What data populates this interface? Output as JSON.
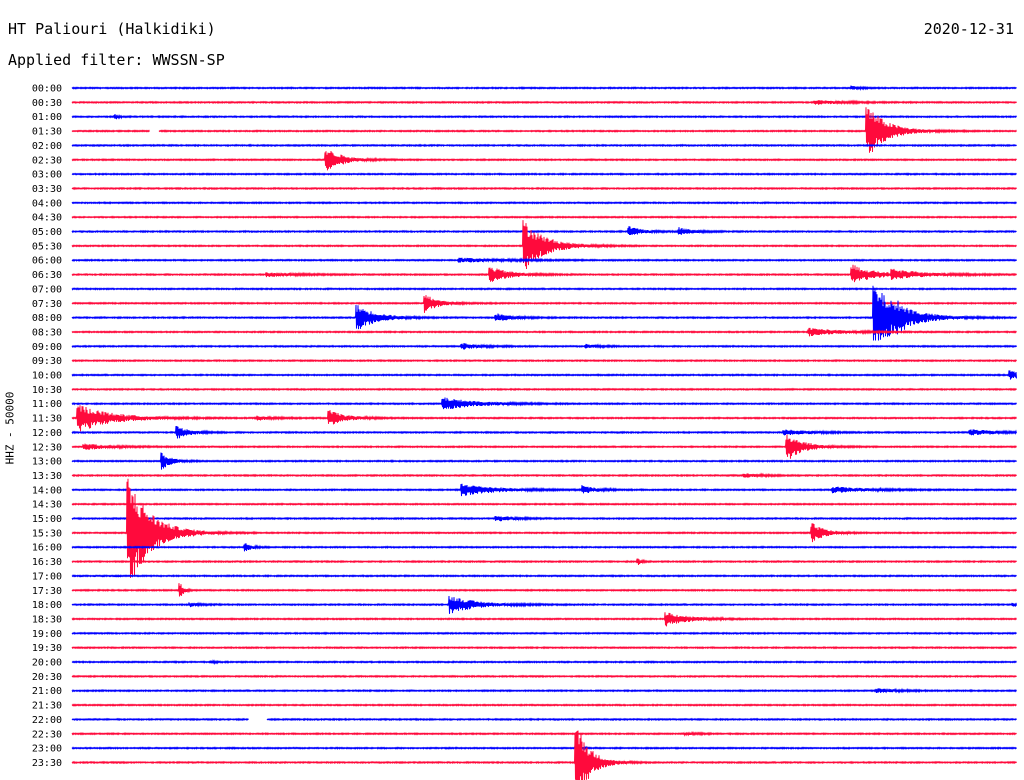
{
  "header": {
    "station": "HT Paliouri (Halkidiki)",
    "date": "2020-12-31",
    "filter": "Applied filter: WWSSN-SP"
  },
  "chart_data": {
    "type": "line",
    "ylabel": "HHZ - 50000",
    "colors": [
      "#0000ff",
      "#ff0a3c"
    ],
    "rows": [
      "00:00",
      "00:30",
      "01:00",
      "01:30",
      "02:00",
      "02:30",
      "03:00",
      "03:30",
      "04:00",
      "04:30",
      "05:00",
      "05:30",
      "06:00",
      "06:30",
      "07:00",
      "07:30",
      "08:00",
      "08:30",
      "09:00",
      "09:30",
      "10:00",
      "10:30",
      "11:00",
      "11:30",
      "12:00",
      "12:30",
      "13:00",
      "13:30",
      "14:00",
      "14:30",
      "15:00",
      "15:30",
      "16:00",
      "16:30",
      "17:00",
      "17:30",
      "18:00",
      "18:30",
      "19:00",
      "19:30",
      "20:00",
      "20:30",
      "21:00",
      "21:30",
      "22:00",
      "22:30",
      "23:00",
      "23:30"
    ],
    "events": [
      {
        "row": 0,
        "minute": 25.2,
        "amp": 2,
        "dur": 0.4
      },
      {
        "row": 1,
        "minute": 24.0,
        "amp": 2,
        "dur": 1.6
      },
      {
        "row": 2,
        "minute": 1.4,
        "amp": 3,
        "dur": 0.2
      },
      {
        "row": 3,
        "minute": 25.7,
        "amp": 26,
        "dur": 1.2
      },
      {
        "row": 5,
        "minute": 8.2,
        "amp": 12,
        "dur": 1.0
      },
      {
        "row": 10,
        "minute": 18.0,
        "amp": 5,
        "dur": 0.8
      },
      {
        "row": 10,
        "minute": 19.6,
        "amp": 4,
        "dur": 0.8
      },
      {
        "row": 11,
        "minute": 14.6,
        "amp": 26,
        "dur": 1.3
      },
      {
        "row": 12,
        "minute": 12.5,
        "amp": 2,
        "dur": 2.8
      },
      {
        "row": 13,
        "minute": 13.5,
        "amp": 8,
        "dur": 1.2
      },
      {
        "row": 13,
        "minute": 6.3,
        "amp": 2,
        "dur": 1.8
      },
      {
        "row": 13,
        "minute": 25.2,
        "amp": 10,
        "dur": 1.3
      },
      {
        "row": 13,
        "minute": 26.5,
        "amp": 4,
        "dur": 2.2
      },
      {
        "row": 15,
        "minute": 11.4,
        "amp": 9,
        "dur": 0.8
      },
      {
        "row": 16,
        "minute": 9.2,
        "amp": 13,
        "dur": 1.2
      },
      {
        "row": 16,
        "minute": 25.9,
        "amp": 34,
        "dur": 1.6
      },
      {
        "row": 16,
        "minute": 13.7,
        "amp": 4,
        "dur": 1.0
      },
      {
        "row": 16,
        "minute": 26.7,
        "amp": 4,
        "dur": 0.5
      },
      {
        "row": 17,
        "minute": 23.8,
        "amp": 4,
        "dur": 1.8
      },
      {
        "row": 18,
        "minute": 12.6,
        "amp": 3,
        "dur": 1.0
      },
      {
        "row": 18,
        "minute": 16.6,
        "amp": 2,
        "dur": 0.8
      },
      {
        "row": 20,
        "minute": 30.3,
        "amp": 4,
        "dur": 1.2
      },
      {
        "row": 22,
        "minute": 12.0,
        "amp": 6,
        "dur": 2.0
      },
      {
        "row": 23,
        "minute": 0.2,
        "amp": 14,
        "dur": 2.0
      },
      {
        "row": 23,
        "minute": 8.3,
        "amp": 8,
        "dur": 1.0
      },
      {
        "row": 23,
        "minute": 6.0,
        "amp": 2,
        "dur": 1.0
      },
      {
        "row": 24,
        "minute": 3.4,
        "amp": 6,
        "dur": 0.8
      },
      {
        "row": 24,
        "minute": 23.0,
        "amp": 3,
        "dur": 1.5
      },
      {
        "row": 24,
        "minute": 29.0,
        "amp": 3,
        "dur": 1.5
      },
      {
        "row": 25,
        "minute": 0.4,
        "amp": 3,
        "dur": 1.5
      },
      {
        "row": 25,
        "minute": 23.1,
        "amp": 14,
        "dur": 1.0
      },
      {
        "row": 26,
        "minute": 2.9,
        "amp": 8,
        "dur": 0.6
      },
      {
        "row": 27,
        "minute": 21.7,
        "amp": 2,
        "dur": 1.0
      },
      {
        "row": 28,
        "minute": 12.6,
        "amp": 6,
        "dur": 2.0
      },
      {
        "row": 28,
        "minute": 16.5,
        "amp": 4,
        "dur": 0.8
      },
      {
        "row": 28,
        "minute": 24.6,
        "amp": 3,
        "dur": 2.0
      },
      {
        "row": 30,
        "minute": 13.7,
        "amp": 3,
        "dur": 1.0
      },
      {
        "row": 31,
        "minute": 1.8,
        "amp": 58,
        "dur": 1.4
      },
      {
        "row": 31,
        "minute": 23.9,
        "amp": 10,
        "dur": 0.8
      },
      {
        "row": 32,
        "minute": 5.6,
        "amp": 4,
        "dur": 0.4
      },
      {
        "row": 33,
        "minute": 18.3,
        "amp": 3,
        "dur": 0.2
      },
      {
        "row": 35,
        "minute": 3.5,
        "amp": 7,
        "dur": 0.2
      },
      {
        "row": 36,
        "minute": 12.2,
        "amp": 9,
        "dur": 1.6
      },
      {
        "row": 36,
        "minute": 3.8,
        "amp": 2,
        "dur": 0.6
      },
      {
        "row": 36,
        "minute": 30.4,
        "amp": 2,
        "dur": 0.4
      },
      {
        "row": 37,
        "minute": 19.2,
        "amp": 7,
        "dur": 1.3
      },
      {
        "row": 40,
        "minute": 4.5,
        "amp": 1,
        "dur": 0.3
      },
      {
        "row": 42,
        "minute": 26.0,
        "amp": 2,
        "dur": 1.2
      },
      {
        "row": 45,
        "minute": 19.8,
        "amp": 1,
        "dur": 0.8
      },
      {
        "row": 46,
        "minute": 16.3,
        "amp": 2,
        "dur": 0.4
      },
      {
        "row": 47,
        "minute": 16.3,
        "amp": 42,
        "dur": 0.8
      }
    ],
    "gaps": [
      {
        "row": 3,
        "from": 2.5,
        "to": 2.8
      },
      {
        "row": 44,
        "from": 5.7,
        "to": 6.3
      }
    ]
  }
}
